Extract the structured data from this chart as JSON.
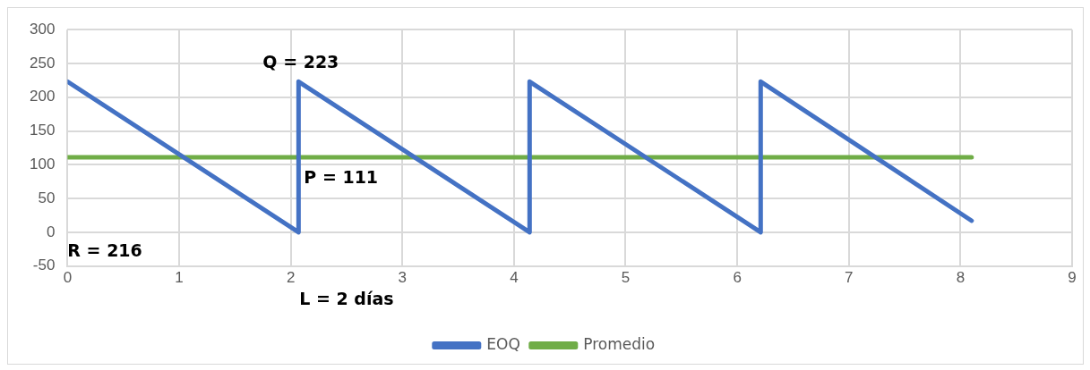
{
  "chart_data": {
    "type": "line",
    "xlim": [
      0,
      9
    ],
    "xticks": [
      0,
      1,
      2,
      3,
      4,
      5,
      6,
      7,
      8,
      9
    ],
    "ylim": [
      -50,
      300
    ],
    "yticks": [
      -50,
      0,
      50,
      100,
      150,
      200,
      250,
      300
    ],
    "grid": true,
    "legend": "bottom",
    "marker": "none",
    "line_style": "solid",
    "series": [
      {
        "name": "EOQ",
        "color": "#4472c4",
        "x": [
          0,
          2.07,
          2.07,
          4.14,
          4.14,
          6.21,
          6.21,
          8.1
        ],
        "values": [
          223,
          0,
          223,
          0,
          223,
          0,
          223,
          17
        ]
      },
      {
        "name": "Promedio",
        "color": "#70ad47",
        "x": [
          0,
          8.1
        ],
        "values": [
          111,
          111
        ]
      }
    ],
    "annotations": [
      {
        "text": "Q = 223",
        "x": 2.07,
        "y": 223
      },
      {
        "text": "P = 111",
        "x": 2.07,
        "y": 111
      },
      "R = 216",
      "L = 2 días"
    ]
  }
}
